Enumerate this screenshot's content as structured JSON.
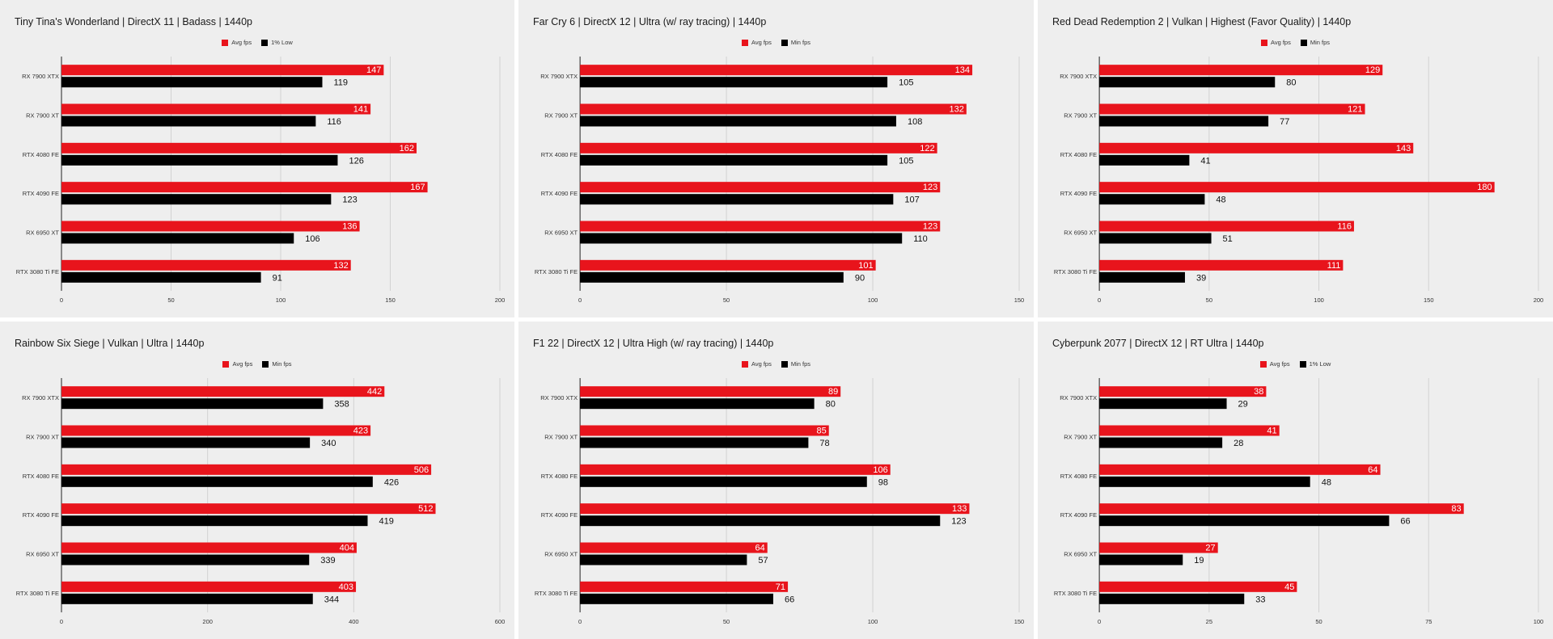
{
  "colors": {
    "primary": "#e8141c",
    "secondary": "#000000",
    "grid": "#d2d2d2",
    "axis": "#222222",
    "panel_bg": "#eeeeee"
  },
  "chart_data": [
    {
      "type": "bar",
      "title": "Tiny Tina's Wonderland | DirectX 11 | Badass | 1440p",
      "categories": [
        "RX 7900 XTX",
        "RX 7900 XT",
        "RTX 4080 FE",
        "RTX 4090 FE",
        "RX 6950 XT",
        "RTX 3080 Ti FE"
      ],
      "series": [
        {
          "name": "Avg fps",
          "values": [
            147,
            141,
            162,
            167,
            136,
            132
          ]
        },
        {
          "name": "1% Low",
          "values": [
            119,
            116,
            126,
            123,
            106,
            91
          ]
        }
      ],
      "xlim": [
        0,
        200
      ],
      "xticks": [
        0,
        50,
        100,
        150,
        200
      ],
      "orientation": "horizontal",
      "grid": true,
      "legend": "top-center"
    },
    {
      "type": "bar",
      "title": "Far Cry 6 | DirectX 12 | Ultra (w/ ray tracing) | 1440p",
      "categories": [
        "RX 7900 XTX",
        "RX 7900 XT",
        "RTX 4080 FE",
        "RTX 4090 FE",
        "RX 6950 XT",
        "RTX 3080 Ti FE"
      ],
      "series": [
        {
          "name": "Avg fps",
          "values": [
            134,
            132,
            122,
            123,
            123,
            101
          ]
        },
        {
          "name": "Min fps",
          "values": [
            105,
            108,
            105,
            107,
            110,
            90
          ]
        }
      ],
      "xlim": [
        0,
        150
      ],
      "xticks": [
        0,
        50,
        100,
        150
      ],
      "orientation": "horizontal",
      "grid": true,
      "legend": "top-center"
    },
    {
      "type": "bar",
      "title": "Red Dead Redemption 2 | Vulkan | Highest (Favor Quality) | 1440p",
      "categories": [
        "RX 7900 XTX",
        "RX 7900 XT",
        "RTX 4080 FE",
        "RTX 4090 FE",
        "RX 6950 XT",
        "RTX 3080 Ti FE"
      ],
      "series": [
        {
          "name": "Avg fps",
          "values": [
            129,
            121,
            143,
            180,
            116,
            111
          ]
        },
        {
          "name": "Min fps",
          "values": [
            80,
            77,
            41,
            48,
            51,
            39
          ]
        }
      ],
      "xlim": [
        0,
        200
      ],
      "xticks": [
        0,
        50,
        100,
        150,
        200
      ],
      "orientation": "horizontal",
      "grid": true,
      "legend": "top-center"
    },
    {
      "type": "bar",
      "title": "Rainbow Six Siege | Vulkan | Ultra | 1440p",
      "categories": [
        "RX 7900 XTX",
        "RX 7900 XT",
        "RTX 4080 FE",
        "RTX 4090 FE",
        "RX 6950 XT",
        "RTX 3080 Ti FE"
      ],
      "series": [
        {
          "name": "Avg fps",
          "values": [
            442,
            423,
            506,
            512,
            404,
            403
          ]
        },
        {
          "name": "Min fps",
          "values": [
            358,
            340,
            426,
            419,
            339,
            344
          ]
        }
      ],
      "xlim": [
        0,
        600
      ],
      "xticks": [
        0,
        200,
        400,
        600
      ],
      "orientation": "horizontal",
      "grid": true,
      "legend": "top-center"
    },
    {
      "type": "bar",
      "title": "F1 22 | DirectX 12 | Ultra High (w/ ray tracing) | 1440p",
      "categories": [
        "RX 7900 XTX",
        "RX 7900 XT",
        "RTX 4080 FE",
        "RTX 4090 FE",
        "RX 6950 XT",
        "RTX 3080 Ti FE"
      ],
      "series": [
        {
          "name": "Avg fps",
          "values": [
            89,
            85,
            106,
            133,
            64,
            71
          ]
        },
        {
          "name": "Min fps",
          "values": [
            80,
            78,
            98,
            123,
            57,
            66
          ]
        }
      ],
      "xlim": [
        0,
        150
      ],
      "xticks": [
        0,
        50,
        100,
        150
      ],
      "orientation": "horizontal",
      "grid": true,
      "legend": "top-center"
    },
    {
      "type": "bar",
      "title": "Cyberpunk 2077 | DirectX 12 | RT Ultra | 1440p",
      "categories": [
        "RX 7900 XTX",
        "RX 7900 XT",
        "RTX 4080 FE",
        "RTX 4090 FE",
        "RX 6950 XT",
        "RTX 3080 Ti FE"
      ],
      "series": [
        {
          "name": "Avg fps",
          "values": [
            38,
            41,
            64,
            83,
            27,
            45
          ]
        },
        {
          "name": "1% Low",
          "values": [
            29,
            28,
            48,
            66,
            19,
            33
          ]
        }
      ],
      "xlim": [
        0,
        100
      ],
      "xticks": [
        0,
        25,
        50,
        75,
        100
      ],
      "orientation": "horizontal",
      "grid": true,
      "legend": "top-center"
    }
  ]
}
